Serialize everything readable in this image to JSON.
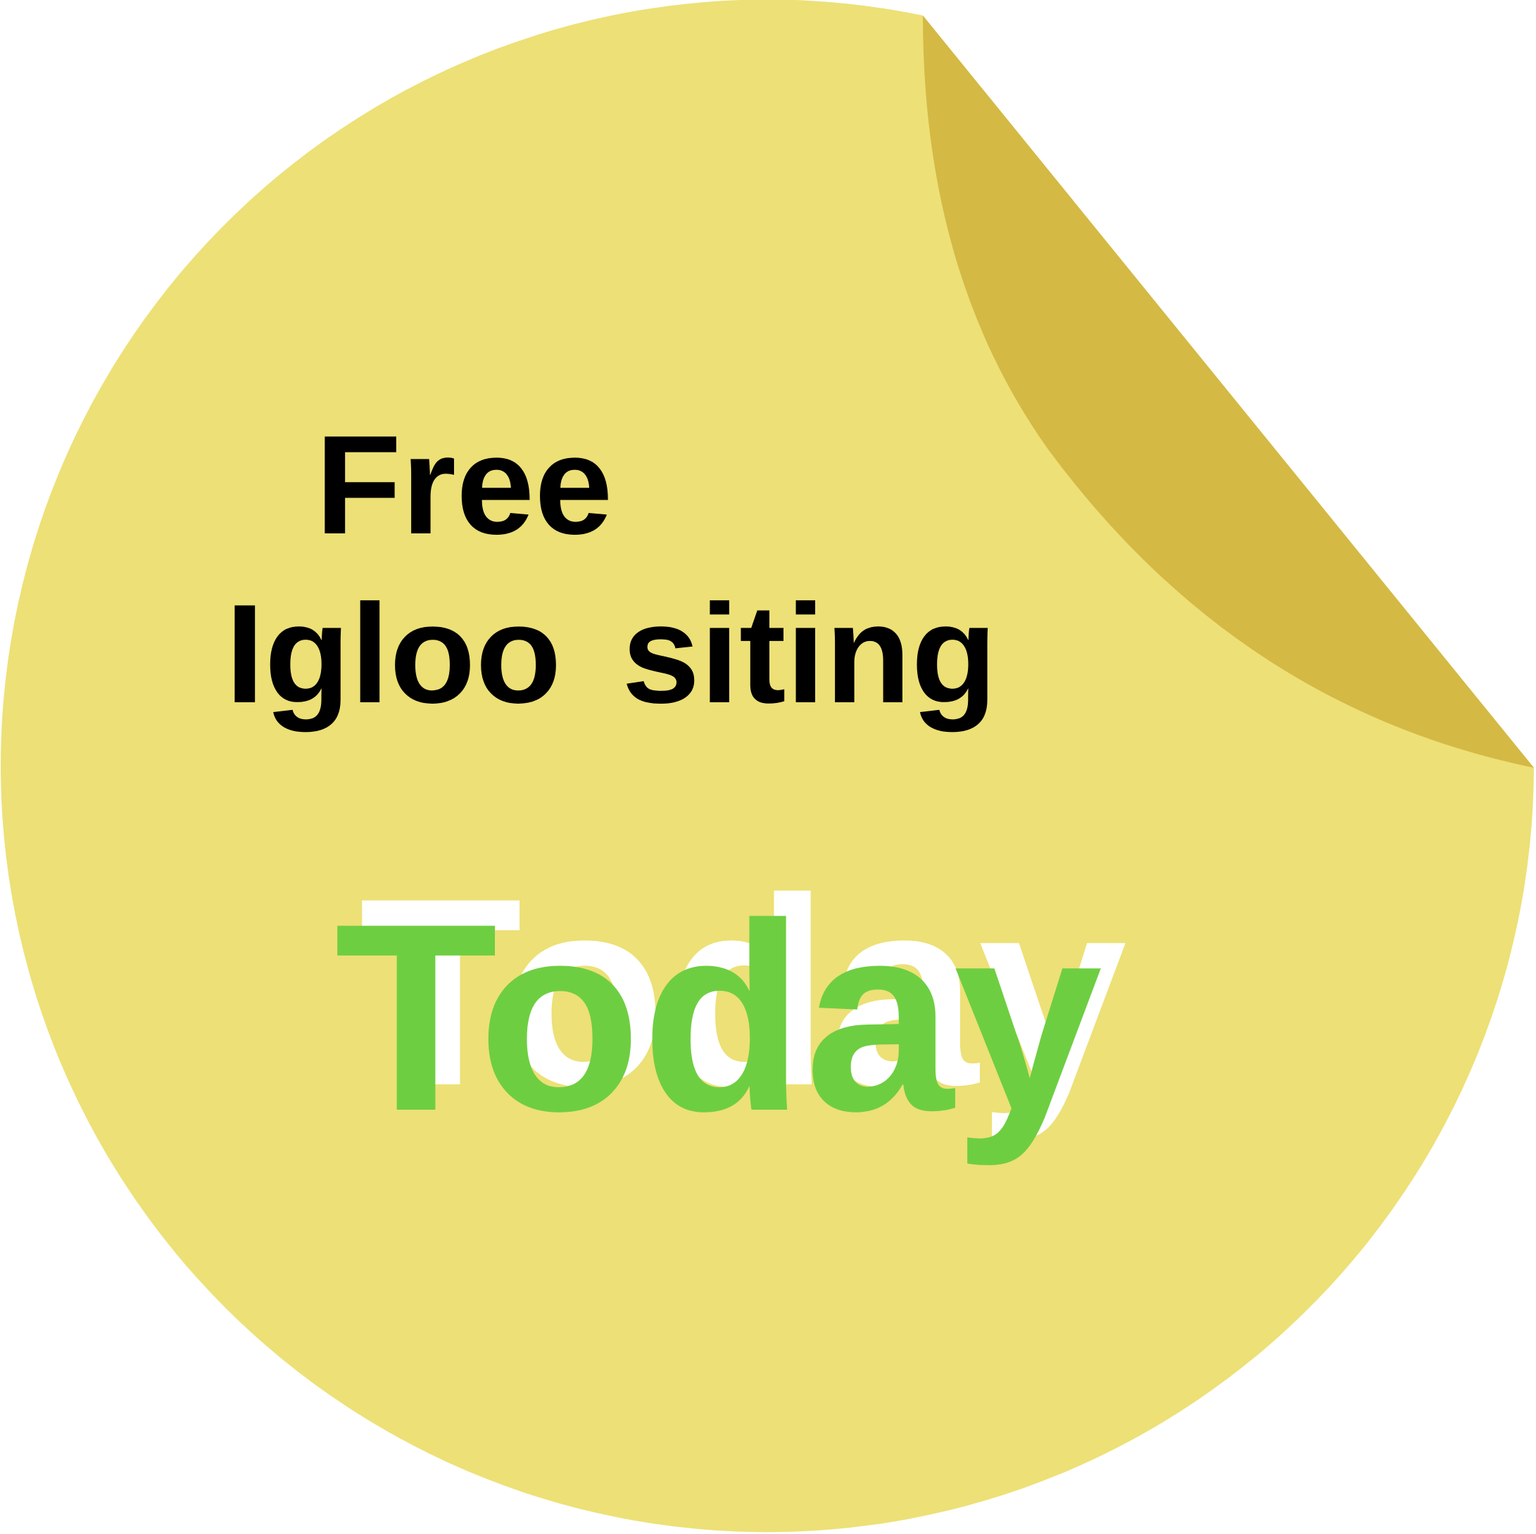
{
  "sticker": {
    "heading_line_1": "Free",
    "heading_line_2": "Igloo siting",
    "highlight_word": "Today",
    "shadow_word": "Today"
  },
  "colors": {
    "sticker_face": "#EDE076",
    "sticker_curl": "#D4B945",
    "heading_text": "#000000",
    "highlight_text": "#6ECE41",
    "highlight_shadow": "#FFFFFF",
    "background": "#FFFFFF"
  },
  "icons": {
    "sticker_shape": "peeling-round-sticker"
  }
}
